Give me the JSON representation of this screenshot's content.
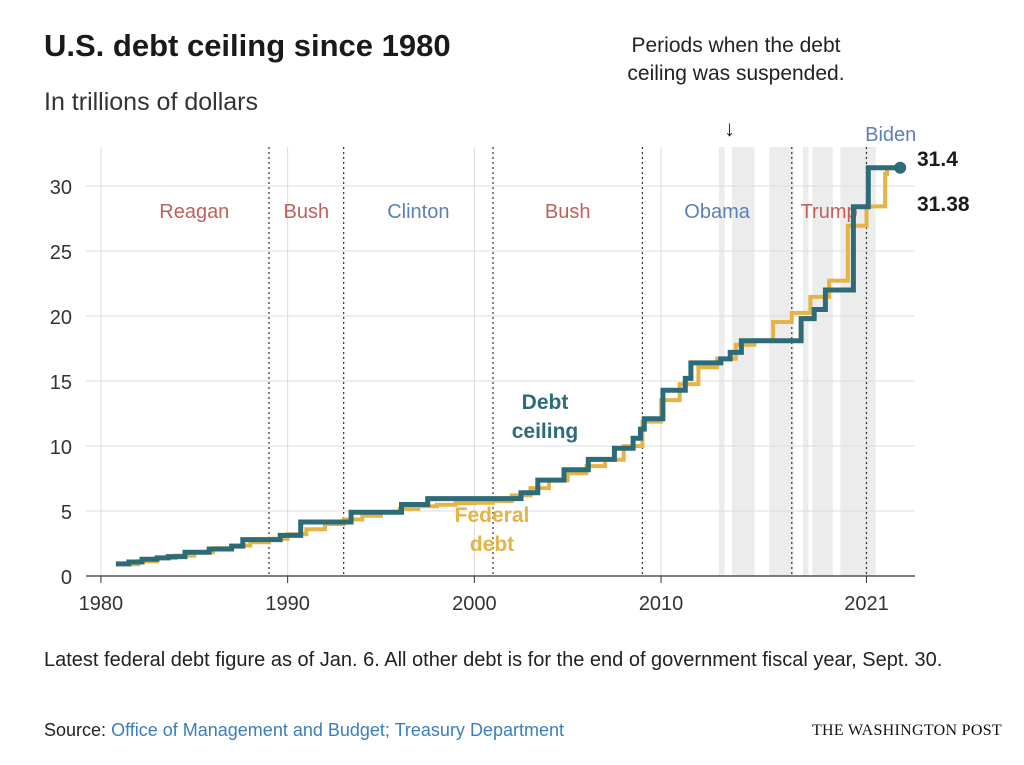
{
  "header": {
    "title": "U.S. debt ceiling since 1980",
    "subtitle": "In trillions of dollars",
    "annotation": "Periods when the debt ceiling was suspended.",
    "arrow": "↓"
  },
  "footer": {
    "note": "Latest federal debt figure as of Jan. 6. All other debt is for the end of government fiscal year, Sept. 30.",
    "source_label": "Source:",
    "source_text": "Office of Management and Budget; Treasury Department",
    "brand": "THE WASHINGTON POST"
  },
  "colors": {
    "ceiling": "#2e6b78",
    "debt": "#e5b444",
    "suspension": "#ececec",
    "republican": "#c0605a",
    "democrat": "#5b7fb8",
    "grid": "#dcdcdc"
  },
  "chart_data": {
    "type": "line",
    "xlim": [
      1979.2,
      2023.6
    ],
    "ylim": [
      0,
      33
    ],
    "x_ticks": [
      1980,
      1990,
      2000,
      2010,
      2021
    ],
    "y_ticks": [
      0,
      5,
      10,
      15,
      20,
      25,
      30
    ],
    "grid": true,
    "presidencies": [
      {
        "label": "Reagan",
        "start": 1981,
        "end": 1989,
        "party": "R"
      },
      {
        "label": "Bush",
        "start": 1989,
        "end": 1993,
        "party": "R"
      },
      {
        "label": "Clinton",
        "start": 1993,
        "end": 2001,
        "party": "D"
      },
      {
        "label": "Bush",
        "start": 2001,
        "end": 2009,
        "party": "R"
      },
      {
        "label": "Obama",
        "start": 2009,
        "end": 2017,
        "party": "D"
      },
      {
        "label": "Trump",
        "start": 2017,
        "end": 2021,
        "party": "R"
      },
      {
        "label": "Biden",
        "start": 2021,
        "end": 2023.1,
        "party": "D"
      }
    ],
    "term_boundaries": [
      1989,
      1993,
      2001,
      2009,
      2017,
      2021
    ],
    "suspensions": [
      [
        2013.1,
        2013.4
      ],
      [
        2013.8,
        2015.0
      ],
      [
        2015.8,
        2017.1
      ],
      [
        2017.6,
        2017.9
      ],
      [
        2018.1,
        2019.2
      ],
      [
        2019.6,
        2021.5
      ]
    ],
    "series": [
      {
        "name": "Debt ceiling",
        "label_lines": [
          "Debt",
          "ceiling"
        ],
        "end_value": "31.4",
        "points": [
          [
            1980.8,
            0.93
          ],
          [
            1981.5,
            1.08
          ],
          [
            1982.2,
            1.29
          ],
          [
            1983.0,
            1.39
          ],
          [
            1983.6,
            1.49
          ],
          [
            1984.5,
            1.82
          ],
          [
            1985.8,
            2.08
          ],
          [
            1987.0,
            2.3
          ],
          [
            1987.6,
            2.8
          ],
          [
            1989.6,
            3.12
          ],
          [
            1990.7,
            4.15
          ],
          [
            1993.4,
            4.9
          ],
          [
            1996.1,
            5.5
          ],
          [
            1997.5,
            5.95
          ],
          [
            2002.5,
            6.4
          ],
          [
            2003.4,
            7.38
          ],
          [
            2004.8,
            8.18
          ],
          [
            2006.1,
            8.97
          ],
          [
            2007.5,
            9.82
          ],
          [
            2008.5,
            10.6
          ],
          [
            2008.9,
            11.3
          ],
          [
            2009.1,
            12.1
          ],
          [
            2010.1,
            14.29
          ],
          [
            2011.3,
            15.2
          ],
          [
            2011.6,
            16.39
          ],
          [
            2013.2,
            16.7
          ],
          [
            2013.7,
            17.2
          ],
          [
            2014.3,
            18.1
          ],
          [
            2017.5,
            19.8
          ],
          [
            2018.2,
            20.5
          ],
          [
            2018.8,
            22.0
          ],
          [
            2020.3,
            28.4
          ],
          [
            2021.1,
            31.4
          ],
          [
            2022.7,
            31.4
          ]
        ]
      },
      {
        "name": "Federal debt",
        "label_lines": [
          "Federal",
          "debt"
        ],
        "end_value": "31.38",
        "points": [
          [
            1980.8,
            0.91
          ],
          [
            1982.0,
            1.14
          ],
          [
            1983.0,
            1.38
          ],
          [
            1984.0,
            1.57
          ],
          [
            1985.0,
            1.82
          ],
          [
            1986.0,
            2.13
          ],
          [
            1987.0,
            2.35
          ],
          [
            1988.0,
            2.6
          ],
          [
            1989.0,
            2.87
          ],
          [
            1990.0,
            3.21
          ],
          [
            1991.0,
            3.6
          ],
          [
            1992.0,
            4.0
          ],
          [
            1993.0,
            4.35
          ],
          [
            1994.0,
            4.64
          ],
          [
            1995.0,
            4.92
          ],
          [
            1996.0,
            5.18
          ],
          [
            1997.0,
            5.37
          ],
          [
            1998.0,
            5.48
          ],
          [
            1999.0,
            5.61
          ],
          [
            2000.0,
            5.63
          ],
          [
            2001.0,
            5.77
          ],
          [
            2002.0,
            6.2
          ],
          [
            2003.0,
            6.76
          ],
          [
            2004.0,
            7.35
          ],
          [
            2005.0,
            7.9
          ],
          [
            2006.0,
            8.45
          ],
          [
            2007.0,
            8.95
          ],
          [
            2008.0,
            9.99
          ],
          [
            2009.0,
            11.88
          ],
          [
            2010.0,
            13.53
          ],
          [
            2011.0,
            14.76
          ],
          [
            2012.0,
            16.05
          ],
          [
            2013.0,
            16.72
          ],
          [
            2014.0,
            17.79
          ],
          [
            2015.0,
            18.12
          ],
          [
            2016.0,
            19.54
          ],
          [
            2017.0,
            20.24
          ],
          [
            2018.0,
            21.47
          ],
          [
            2019.0,
            22.72
          ],
          [
            2020.0,
            26.95
          ],
          [
            2021.0,
            28.43
          ],
          [
            2022.0,
            30.93
          ],
          [
            2022.1,
            31.38
          ],
          [
            2022.7,
            31.38
          ]
        ]
      }
    ]
  }
}
